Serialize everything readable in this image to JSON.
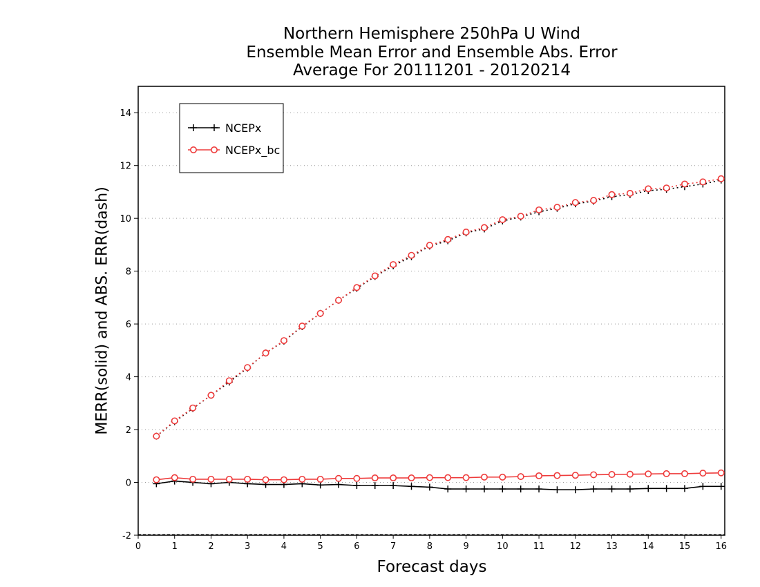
{
  "chart_data": {
    "type": "line",
    "title_lines": [
      "Northern Hemisphere 250hPa U Wind",
      "Ensemble Mean Error and Ensemble Abs. Error",
      "Average For 20111201 - 20120214"
    ],
    "xlabel": "Forecast days",
    "ylabel": "MERR(solid) and ABS. ERR(dash)",
    "xlim": [
      0,
      16.1
    ],
    "ylim": [
      -2,
      15
    ],
    "xticks": [
      0,
      1,
      2,
      3,
      4,
      5,
      6,
      7,
      8,
      9,
      10,
      11,
      12,
      13,
      14,
      15,
      16
    ],
    "yticks": [
      -2,
      0,
      2,
      4,
      6,
      8,
      10,
      12,
      14
    ],
    "grid": "horizontal dotted",
    "legend_position": "top-left",
    "x": [
      0.5,
      1,
      1.5,
      2,
      2.5,
      3,
      3.5,
      4,
      4.5,
      5,
      5.5,
      6,
      6.5,
      7,
      7.5,
      8,
      8.5,
      9,
      9.5,
      10,
      10.5,
      11,
      11.5,
      12,
      12.5,
      13,
      13.5,
      14,
      14.5,
      15,
      15.5,
      16
    ],
    "series": [
      {
        "name": "NCEPx",
        "color": "#000000",
        "marker": "plus",
        "merr": [
          -0.05,
          0.05,
          0.0,
          -0.05,
          0.0,
          -0.05,
          -0.08,
          -0.08,
          -0.05,
          -0.1,
          -0.08,
          -0.12,
          -0.12,
          -0.12,
          -0.15,
          -0.18,
          -0.25,
          -0.25,
          -0.25,
          -0.25,
          -0.25,
          -0.25,
          -0.28,
          -0.28,
          -0.25,
          -0.25,
          -0.25,
          -0.23,
          -0.23,
          -0.23,
          -0.15,
          -0.15
        ],
        "abs_err": [
          1.75,
          2.3,
          2.8,
          3.3,
          3.8,
          4.33,
          4.9,
          5.35,
          5.9,
          6.4,
          6.9,
          7.35,
          7.8,
          8.2,
          8.55,
          8.95,
          9.15,
          9.45,
          9.6,
          9.9,
          10.05,
          10.25,
          10.38,
          10.55,
          10.65,
          10.82,
          10.9,
          11.05,
          11.1,
          11.2,
          11.3,
          11.45
        ]
      },
      {
        "name": "NCEPx_bc",
        "color": "#ee3b3b",
        "marker": "circle",
        "merr": [
          0.1,
          0.18,
          0.12,
          0.12,
          0.12,
          0.12,
          0.1,
          0.1,
          0.12,
          0.12,
          0.15,
          0.15,
          0.17,
          0.17,
          0.17,
          0.18,
          0.18,
          0.18,
          0.2,
          0.2,
          0.22,
          0.25,
          0.26,
          0.27,
          0.29,
          0.3,
          0.31,
          0.32,
          0.33,
          0.33,
          0.35,
          0.36
        ],
        "abs_err": [
          1.75,
          2.33,
          2.82,
          3.3,
          3.85,
          4.35,
          4.9,
          5.37,
          5.92,
          6.4,
          6.9,
          7.38,
          7.82,
          8.25,
          8.6,
          8.98,
          9.2,
          9.48,
          9.65,
          9.95,
          10.08,
          10.32,
          10.42,
          10.6,
          10.68,
          10.9,
          10.95,
          11.12,
          11.15,
          11.3,
          11.38,
          11.5
        ]
      }
    ]
  }
}
